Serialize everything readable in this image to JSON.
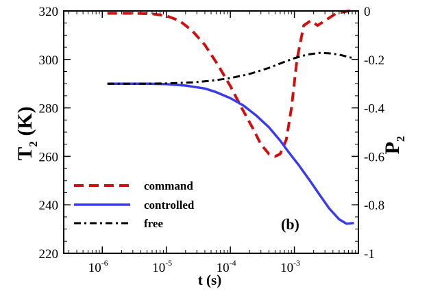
{
  "chart_data": {
    "type": "line",
    "panel_label": "(b)",
    "xlabel": "t (s)",
    "ylabel_left": {
      "main": "T",
      "sub": "2",
      "unit": " (K)"
    },
    "ylabel_right": {
      "main": "P",
      "sub": "2"
    },
    "x_scale": "log",
    "xlim": [
      2.5e-07,
      0.01
    ],
    "ylim_left": [
      220,
      320
    ],
    "ylim_right": [
      -1,
      0
    ],
    "x_ticks": [
      {
        "value": 1e-06,
        "base": "10",
        "exp": "-6"
      },
      {
        "value": 1e-05,
        "base": "10",
        "exp": "-5"
      },
      {
        "value": 0.0001,
        "base": "10",
        "exp": "-4"
      },
      {
        "value": 0.001,
        "base": "10",
        "exp": "-3"
      }
    ],
    "y_ticks_left": [
      220,
      240,
      260,
      280,
      300,
      320
    ],
    "y_ticks_right": [
      {
        "value": -1,
        "label": "-1"
      },
      {
        "value": -0.8,
        "label": "-0.8"
      },
      {
        "value": -0.6,
        "label": "-0.6"
      },
      {
        "value": -0.4,
        "label": "-0.4"
      },
      {
        "value": -0.2,
        "label": "-0.2"
      },
      {
        "value": 0,
        "label": "0"
      }
    ],
    "grid": false,
    "legend_position": "bottom-left",
    "series": [
      {
        "name": "command",
        "axis": "right",
        "color": "#cc1111",
        "dash": "dashed",
        "points": [
          [
            1.2e-06,
            -0.01
          ],
          [
            3e-06,
            -0.01
          ],
          [
            6e-06,
            -0.012
          ],
          [
            1e-05,
            -0.02
          ],
          [
            1.6e-05,
            -0.04
          ],
          [
            2.5e-05,
            -0.08
          ],
          [
            4e-05,
            -0.14
          ],
          [
            6.3e-05,
            -0.22
          ],
          [
            0.0001,
            -0.31
          ],
          [
            0.00015,
            -0.4
          ],
          [
            0.00022,
            -0.48
          ],
          [
            0.0003,
            -0.55
          ],
          [
            0.0004,
            -0.59
          ],
          [
            0.0005,
            -0.6
          ],
          [
            0.0006,
            -0.59
          ],
          [
            0.00075,
            -0.53
          ],
          [
            0.0009,
            -0.4
          ],
          [
            0.0011,
            -0.2
          ],
          [
            0.0014,
            -0.06
          ],
          [
            0.0018,
            -0.04
          ],
          [
            0.0023,
            -0.06
          ],
          [
            0.003,
            -0.04
          ],
          [
            0.0045,
            -0.01
          ],
          [
            0.007,
            0.0
          ],
          [
            0.009,
            0.0
          ]
        ]
      },
      {
        "name": "controlled",
        "axis": "left",
        "color": "#3b3bee",
        "dash": "solid",
        "points": [
          [
            1.2e-06,
            290
          ],
          [
            5e-06,
            290
          ],
          [
            1e-05,
            289.8
          ],
          [
            2e-05,
            289.2
          ],
          [
            4e-05,
            288
          ],
          [
            6e-05,
            286.5
          ],
          [
            0.0001,
            284
          ],
          [
            0.00016,
            281
          ],
          [
            0.00025,
            277
          ],
          [
            0.0004,
            272
          ],
          [
            0.0006,
            266.5
          ],
          [
            0.0008,
            262
          ],
          [
            0.0012,
            256
          ],
          [
            0.0018,
            249.5
          ],
          [
            0.0025,
            244
          ],
          [
            0.0035,
            238.5
          ],
          [
            0.005,
            234
          ],
          [
            0.0065,
            232.2
          ],
          [
            0.0085,
            232.5
          ]
        ]
      },
      {
        "name": "free",
        "axis": "left",
        "color": "#000000",
        "dash": "dashdot",
        "points": [
          [
            1.2e-06,
            290
          ],
          [
            5e-06,
            290
          ],
          [
            1e-05,
            290.1
          ],
          [
            2.5e-05,
            290.5
          ],
          [
            5e-05,
            291.2
          ],
          [
            0.0001,
            292.3
          ],
          [
            0.0002,
            294
          ],
          [
            0.0004,
            296.5
          ],
          [
            0.0007,
            299
          ],
          [
            0.001,
            300.5
          ],
          [
            0.0016,
            302
          ],
          [
            0.0025,
            302.7
          ],
          [
            0.0035,
            302.5
          ],
          [
            0.005,
            302
          ],
          [
            0.007,
            301
          ],
          [
            0.0085,
            300.5
          ]
        ]
      }
    ]
  }
}
